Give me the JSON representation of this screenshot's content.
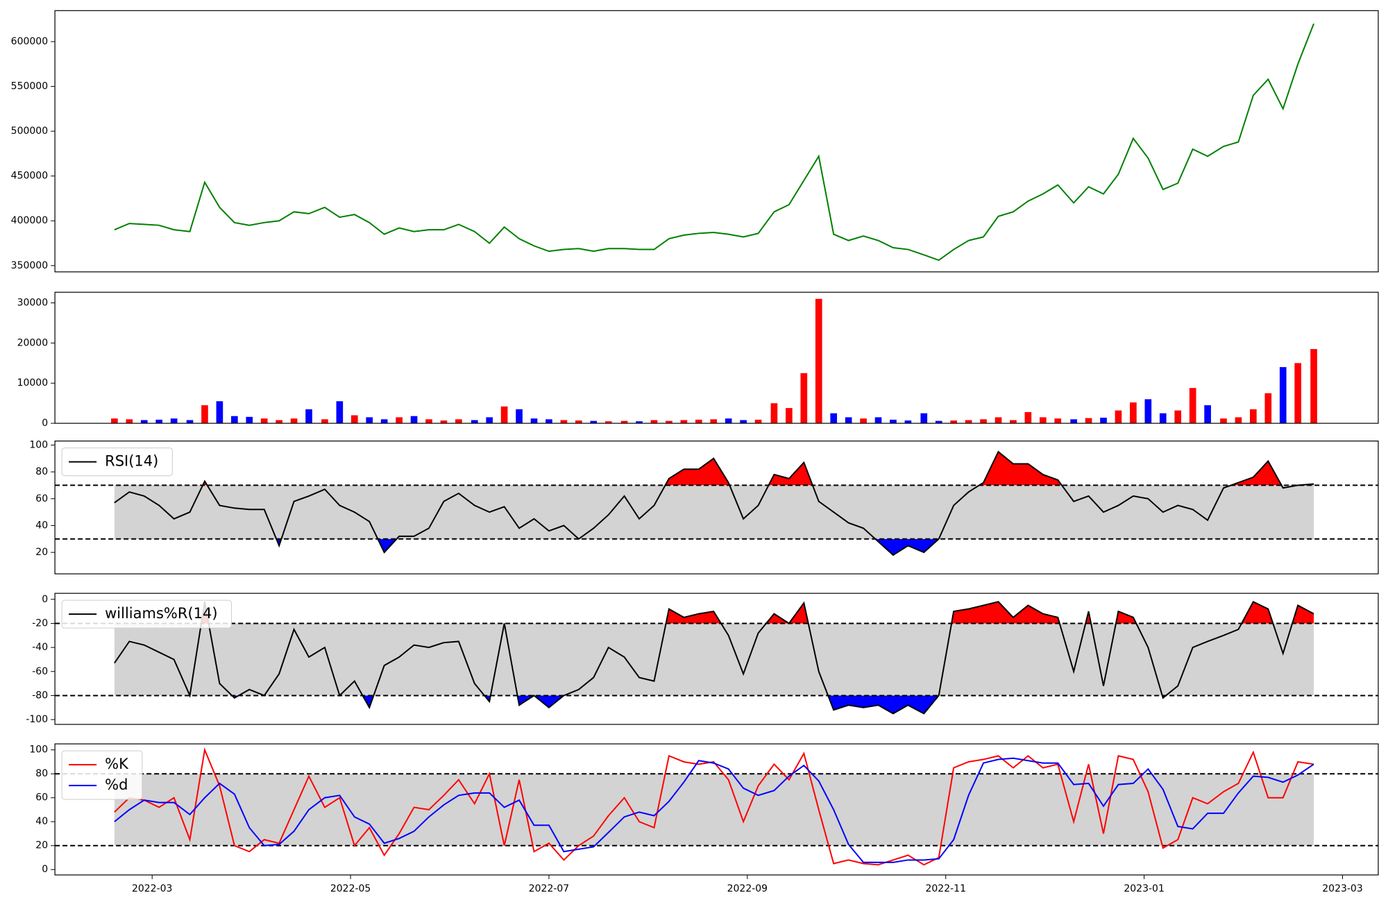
{
  "chart_data": [
    {
      "type": "line",
      "series": [
        {
          "color": "green",
          "values": [
            390000,
            397000,
            396000,
            395000,
            390000,
            388000,
            443000,
            415000,
            398000,
            395000,
            398000,
            400000,
            410000,
            408000,
            415000,
            404000,
            407000,
            398000,
            385000,
            392000,
            388000,
            390000,
            390000,
            396000,
            388000,
            375000,
            393000,
            380000,
            372000,
            366000,
            368000,
            369000,
            366000,
            369000,
            369000,
            368000,
            368000,
            380000,
            384000,
            386000,
            387000,
            385000,
            382000,
            386000,
            410000,
            418000,
            445000,
            472000,
            385000,
            378000,
            383000,
            378000,
            370000,
            368000,
            362000,
            356000,
            368000,
            378000,
            382000,
            405000,
            410000,
            422000,
            430000,
            440000,
            420000,
            438000,
            430000,
            452000,
            492000,
            470000,
            435000,
            442000,
            480000,
            472000,
            483000,
            488000,
            540000,
            558000,
            525000,
            575000,
            620000
          ]
        }
      ],
      "ylim": [
        343000,
        634600
      ],
      "yticks": [
        350000,
        400000,
        450000,
        500000,
        550000,
        600000
      ]
    },
    {
      "type": "bar",
      "up_color": "red",
      "down_color": "blue",
      "values": [
        1200,
        1000,
        800,
        900,
        1200,
        800,
        4500,
        5500,
        1800,
        1600,
        1200,
        800,
        1200,
        3500,
        1000,
        5500,
        2000,
        1500,
        1000,
        1500,
        1800,
        1000,
        700,
        1000,
        800,
        1500,
        4200,
        3500,
        1200,
        1000,
        800,
        700,
        600,
        500,
        600,
        500,
        800,
        600,
        800,
        900,
        1000,
        1200,
        800,
        900,
        5000,
        3800,
        12500,
        31000,
        2500,
        1500,
        1200,
        1500,
        900,
        700,
        2500,
        600,
        700,
        800,
        1000,
        1500,
        800,
        2800,
        1500,
        1200,
        1000,
        1300,
        1400,
        3200,
        5200,
        6000,
        2500,
        3200,
        8800,
        4500,
        1200,
        1500,
        3500,
        7500,
        14000,
        15000,
        18500
      ],
      "ylim": [
        0,
        32650
      ],
      "yticks": [
        0,
        10000,
        20000,
        30000
      ]
    },
    {
      "type": "line",
      "legend": "upper left",
      "series": [
        {
          "name": "RSI(14)",
          "color": "black",
          "values": [
            57,
            65,
            62,
            55,
            45,
            50,
            73,
            55,
            53,
            52,
            52,
            25,
            58,
            62,
            67,
            55,
            50,
            43,
            20,
            32,
            32,
            38,
            58,
            64,
            55,
            50,
            54,
            38,
            45,
            36,
            40,
            30,
            38,
            48,
            62,
            45,
            55,
            75,
            82,
            82,
            90,
            72,
            45,
            55,
            78,
            75,
            87,
            58,
            50,
            42,
            38,
            28,
            18,
            25,
            20,
            30,
            55,
            65,
            72,
            95,
            86,
            86,
            78,
            74,
            58,
            62,
            50,
            55,
            62,
            60,
            50,
            55,
            52,
            44,
            68,
            72,
            76,
            88,
            68,
            70,
            71
          ]
        }
      ],
      "hlines": [
        30,
        70
      ],
      "band_color": "lightgray",
      "above_color": "red",
      "below_color": "blue",
      "ylim": [
        4,
        103
      ],
      "yticks": [
        20,
        40,
        60,
        80,
        100
      ]
    },
    {
      "type": "line",
      "legend": "upper left",
      "series": [
        {
          "name": "williams%R(14)",
          "color": "black",
          "values": [
            -53,
            -35,
            -38,
            -44,
            -50,
            -80,
            -2,
            -70,
            -82,
            -75,
            -80,
            -62,
            -25,
            -48,
            -40,
            -80,
            -68,
            -90,
            -55,
            -48,
            -38,
            -40,
            -36,
            -35,
            -70,
            -85,
            -20,
            -88,
            -80,
            -90,
            -80,
            -75,
            -65,
            -40,
            -48,
            -65,
            -68,
            -8,
            -15,
            -12,
            -10,
            -30,
            -62,
            -28,
            -12,
            -20,
            -3,
            -60,
            -92,
            -88,
            -90,
            -88,
            -95,
            -88,
            -95,
            -80,
            -10,
            -8,
            -5,
            -2,
            -15,
            -5,
            -12,
            -15,
            -60,
            -10,
            -72,
            -10,
            -15,
            -40,
            -82,
            -72,
            -40,
            -35,
            -30,
            -25,
            -2,
            -8,
            -45,
            -5,
            -12
          ]
        }
      ],
      "hlines": [
        -80,
        -20
      ],
      "band_color": "lightgray",
      "above_color": "red",
      "below_color": "blue",
      "ylim": [
        -104,
        5
      ],
      "yticks": [
        -100,
        -80,
        -60,
        -40,
        -20,
        0
      ]
    },
    {
      "type": "line",
      "legend": "upper left",
      "x": [
        1.62,
        1.77,
        1.92,
        2.07,
        2.22,
        2.38,
        2.53,
        2.68,
        2.83,
        2.98,
        3.13,
        3.28,
        3.43,
        3.58,
        3.74,
        3.89,
        4.04,
        4.19,
        4.34,
        4.49,
        4.64,
        4.79,
        4.94,
        5.09,
        5.25,
        5.4,
        5.55,
        5.7,
        5.85,
        6.0,
        6.15,
        6.3,
        6.45,
        6.6,
        6.76,
        6.91,
        7.06,
        7.21,
        7.36,
        7.51,
        7.66,
        7.81,
        7.96,
        8.11,
        8.27,
        8.42,
        8.57,
        8.72,
        8.87,
        9.02,
        9.17,
        9.32,
        9.47,
        9.62,
        9.78,
        9.93,
        10.08,
        10.23,
        10.38,
        10.53,
        10.68,
        10.83,
        10.98,
        11.13,
        11.29,
        11.44,
        11.59,
        11.74,
        11.89,
        12.04,
        12.19,
        12.34,
        12.49,
        12.64,
        12.8,
        12.95,
        13.1,
        13.25,
        13.4,
        13.55,
        13.71
      ],
      "xlim": [
        1.02,
        14.36
      ],
      "xticks": [
        {
          "value": 2,
          "label": "2022-03"
        },
        {
          "value": 4,
          "label": "2022-05"
        },
        {
          "value": 6,
          "label": "2022-07"
        },
        {
          "value": 8,
          "label": "2022-09"
        },
        {
          "value": 10,
          "label": "2022-11"
        },
        {
          "value": 12,
          "label": "2023-01"
        },
        {
          "value": 14,
          "label": "2023-03"
        }
      ],
      "series": [
        {
          "name": "%K",
          "color": "red",
          "values": [
            48,
            60,
            58,
            52,
            60,
            25,
            100,
            70,
            20,
            15,
            25,
            22,
            50,
            78,
            52,
            60,
            20,
            35,
            12,
            30,
            52,
            50,
            62,
            75,
            55,
            80,
            20,
            75,
            15,
            22,
            8,
            20,
            28,
            45,
            60,
            40,
            35,
            95,
            90,
            88,
            90,
            75,
            40,
            70,
            88,
            75,
            97,
            50,
            5,
            8,
            5,
            4,
            8,
            12,
            4,
            10,
            85,
            90,
            92,
            95,
            85,
            95,
            85,
            88,
            40,
            88,
            30,
            95,
            92,
            65,
            18,
            25,
            60,
            55,
            65,
            72,
            98,
            60,
            60,
            90,
            88
          ]
        },
        {
          "name": "%d",
          "color": "blue",
          "values": [
            40,
            50,
            58,
            56,
            56,
            46,
            60,
            72,
            63,
            35,
            20,
            21,
            32,
            50,
            60,
            62,
            44,
            38,
            22,
            26,
            32,
            44,
            54,
            62,
            64,
            64,
            52,
            58,
            37,
            37,
            15,
            17,
            19,
            31,
            44,
            48,
            45,
            57,
            73,
            91,
            89,
            84,
            68,
            62,
            66,
            78,
            87,
            74,
            50,
            21,
            6,
            6,
            6,
            8,
            8,
            9,
            25,
            62,
            89,
            92,
            93,
            91,
            89,
            89,
            71,
            72,
            53,
            71,
            72,
            84,
            67,
            36,
            34,
            47,
            47,
            64,
            78,
            77,
            73,
            79,
            88
          ]
        }
      ],
      "hlines": [
        20,
        80
      ],
      "band_color": "lightgray",
      "ylim": [
        -4.5,
        105
      ],
      "yticks": [
        0,
        20,
        40,
        60,
        80,
        100
      ]
    }
  ]
}
